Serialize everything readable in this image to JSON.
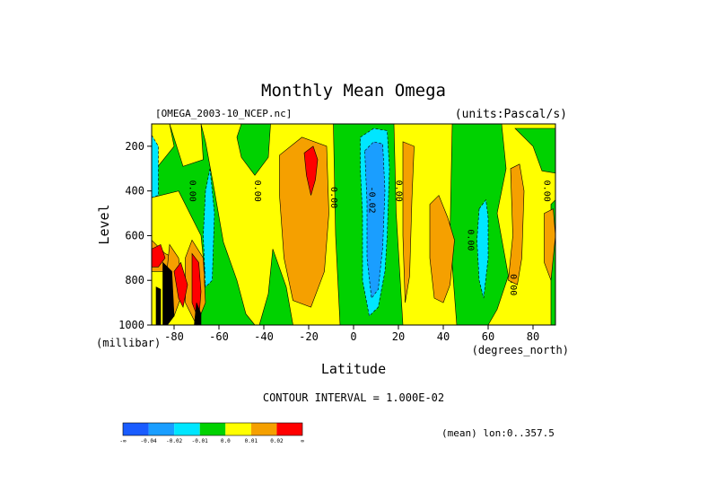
{
  "chart_data": {
    "type": "heatmap",
    "title": "Monthly Mean Omega",
    "file_label": "[OMEGA_2003-10_NCEP.nc]",
    "units_label": "(units:Pascal/s)",
    "xlabel": "Latitude",
    "xunit": "(degrees_north)",
    "ylabel": "Level",
    "yunit": "(millibar)",
    "xlim": [
      -90,
      90
    ],
    "ylim": [
      1000,
      100
    ],
    "xticks": [
      -80,
      -60,
      -40,
      -20,
      0,
      20,
      40,
      60,
      80
    ],
    "xtick_labels": [
      "-80",
      "-60",
      "-40",
      "-20",
      "0",
      "20",
      "40",
      "60",
      "80"
    ],
    "yticks": [
      200,
      400,
      600,
      800,
      1000
    ],
    "ytick_labels": [
      "200",
      "400",
      "600",
      "800",
      "1000"
    ],
    "contour_interval_text": "CONTOUR INTERVAL = 1.000E-02",
    "average_note": "(mean) lon:0..357.5",
    "contour_labels": [
      {
        "lat": -73,
        "level": 400,
        "text": "0.00"
      },
      {
        "lat": -44,
        "level": 400,
        "text": "0.00"
      },
      {
        "lat": -10,
        "level": 430,
        "text": "0.00"
      },
      {
        "lat": 7,
        "level": 440,
        "text": "-0.02"
      },
      {
        "lat": 19,
        "level": 400,
        "text": "0.00"
      },
      {
        "lat": 51,
        "level": 620,
        "text": "0.00"
      },
      {
        "lat": 70,
        "level": 820,
        "text": "0.00"
      },
      {
        "lat": 85,
        "level": 400,
        "text": "0.00"
      }
    ],
    "colorbar": {
      "colors": [
        "#1a5cff",
        "#1a9eff",
        "#00e6ff",
        "#00d200",
        "#ffff00",
        "#f5a000",
        "#ff0000"
      ],
      "labels": [
        "-∞",
        "-0.04",
        "-0.02",
        "-0.01",
        "0.0",
        "0.01",
        "0.02",
        "∞"
      ]
    },
    "level_colors": {
      "black": "#000000",
      "below_-0.04": "#1a5cff",
      "-0.04_to_-0.02": "#1a9eff",
      "-0.02_to_-0.01": "#00e6ff",
      "-0.01_to_0.0": "#00d200",
      "0.0_to_0.01": "#ffff00",
      "0.01_to_0.02": "#f5a000",
      "above_0.02": "#ff0000"
    },
    "regions": [
      {
        "color": "#00d200",
        "pts": [
          [
            -90,
            100
          ],
          [
            -68,
            100
          ],
          [
            -66,
            180
          ],
          [
            -62,
            400
          ],
          [
            -58,
            630
          ],
          [
            -52,
            800
          ],
          [
            -48,
            950
          ],
          [
            -44,
            1000
          ],
          [
            -90,
            1000
          ]
        ]
      },
      {
        "color": "#00d200",
        "pts": [
          [
            -50,
            100
          ],
          [
            -37,
            100
          ],
          [
            -38,
            250
          ],
          [
            -44,
            330
          ],
          [
            -50,
            250
          ],
          [
            -52,
            160
          ]
        ]
      },
      {
        "color": "#00d200",
        "pts": [
          [
            -36,
            660
          ],
          [
            -30,
            830
          ],
          [
            -27,
            1000
          ],
          [
            -42,
            1000
          ],
          [
            -38,
            860
          ]
        ]
      },
      {
        "color": "#00d200",
        "pts": [
          [
            -9,
            100
          ],
          [
            18,
            100
          ],
          [
            19,
            500
          ],
          [
            22,
            1000
          ],
          [
            -6,
            1000
          ],
          [
            -8,
            600
          ]
        ]
      },
      {
        "color": "#00d200",
        "pts": [
          [
            44,
            100
          ],
          [
            66,
            100
          ],
          [
            68,
            300
          ],
          [
            64,
            500
          ],
          [
            69,
            780
          ],
          [
            64,
            930
          ],
          [
            60,
            1000
          ],
          [
            46,
            1000
          ],
          [
            43,
            600
          ]
        ]
      },
      {
        "color": "#00d200",
        "pts": [
          [
            72,
            120
          ],
          [
            90,
            120
          ],
          [
            90,
            320
          ],
          [
            84,
            310
          ],
          [
            80,
            200
          ]
        ]
      },
      {
        "color": "#00d200",
        "pts": [
          [
            88,
            460
          ],
          [
            90,
            440
          ],
          [
            90,
            1000
          ],
          [
            88,
            1000
          ]
        ]
      },
      {
        "color": "#ffff00",
        "pts": [
          [
            -90,
            430
          ],
          [
            -78,
            400
          ],
          [
            -68,
            600
          ],
          [
            -66,
            800
          ],
          [
            -70,
            1000
          ],
          [
            -90,
            1000
          ]
        ]
      },
      {
        "color": "#ffff00",
        "pts": [
          [
            -90,
            100
          ],
          [
            -82,
            100
          ],
          [
            -80,
            200
          ],
          [
            -88,
            300
          ],
          [
            -90,
            300
          ]
        ]
      },
      {
        "color": "#ffff00",
        "pts": [
          [
            -82,
            100
          ],
          [
            -68,
            100
          ],
          [
            -67,
            260
          ],
          [
            -76,
            290
          ]
        ]
      },
      {
        "color": "#00e6ff",
        "pts": [
          [
            -90,
            150
          ],
          [
            -87,
            200
          ],
          [
            -87,
            420
          ],
          [
            -90,
            430
          ]
        ]
      },
      {
        "color": "#00e6ff",
        "pts": [
          [
            -64,
            300
          ],
          [
            -62,
            500
          ],
          [
            -63,
            800
          ],
          [
            -66,
            830
          ],
          [
            -67,
            600
          ],
          [
            -66,
            400
          ]
        ]
      },
      {
        "color": "#00e6ff",
        "pts": [
          [
            -77,
            760
          ],
          [
            -74,
            850
          ],
          [
            -76,
            900
          ],
          [
            -79,
            830
          ]
        ]
      },
      {
        "color": "#f5a000",
        "pts": [
          [
            -33,
            240
          ],
          [
            -23,
            160
          ],
          [
            -12,
            200
          ],
          [
            -11,
            500
          ],
          [
            -13,
            760
          ],
          [
            -19,
            920
          ],
          [
            -27,
            890
          ],
          [
            -31,
            700
          ],
          [
            -33,
            420
          ]
        ]
      },
      {
        "color": "#f5a000",
        "pts": [
          [
            -90,
            620
          ],
          [
            -84,
            680
          ],
          [
            -80,
            700
          ],
          [
            -83,
            760
          ],
          [
            -90,
            760
          ]
        ]
      },
      {
        "color": "#f5a000",
        "pts": [
          [
            -82,
            640
          ],
          [
            -78,
            700
          ],
          [
            -76,
            850
          ],
          [
            -80,
            960
          ],
          [
            -84,
            840
          ]
        ]
      },
      {
        "color": "#f5a000",
        "pts": [
          [
            -72,
            620
          ],
          [
            -67,
            700
          ],
          [
            -66,
            900
          ],
          [
            -70,
            1000
          ],
          [
            -75,
            900
          ],
          [
            -75,
            700
          ]
        ]
      },
      {
        "color": "#f5a000",
        "pts": [
          [
            22,
            180
          ],
          [
            27,
            200
          ],
          [
            26,
            440
          ],
          [
            25,
            780
          ],
          [
            23,
            900
          ],
          [
            22,
            600
          ]
        ]
      },
      {
        "color": "#f5a000",
        "pts": [
          [
            34,
            460
          ],
          [
            38,
            420
          ],
          [
            42,
            520
          ],
          [
            45,
            620
          ],
          [
            43,
            820
          ],
          [
            40,
            900
          ],
          [
            36,
            880
          ],
          [
            34,
            700
          ]
        ]
      },
      {
        "color": "#f5a000",
        "pts": [
          [
            70,
            300
          ],
          [
            74,
            280
          ],
          [
            76,
            400
          ],
          [
            75,
            700
          ],
          [
            73,
            820
          ],
          [
            69,
            800
          ],
          [
            71,
            600
          ]
        ]
      },
      {
        "color": "#f5a000",
        "pts": [
          [
            85,
            500
          ],
          [
            89,
            480
          ],
          [
            90,
            600
          ],
          [
            88,
            800
          ],
          [
            85,
            720
          ]
        ]
      },
      {
        "color": "#ff0000",
        "pts": [
          [
            -22,
            230
          ],
          [
            -18,
            200
          ],
          [
            -16,
            260
          ],
          [
            -17,
            350
          ],
          [
            -19,
            420
          ],
          [
            -21,
            330
          ]
        ]
      },
      {
        "color": "#ff0000",
        "pts": [
          [
            -90,
            660
          ],
          [
            -86,
            640
          ],
          [
            -84,
            700
          ],
          [
            -87,
            740
          ],
          [
            -90,
            740
          ]
        ]
      },
      {
        "color": "#ff0000",
        "pts": [
          [
            -80,
            760
          ],
          [
            -77,
            720
          ],
          [
            -74,
            820
          ],
          [
            -76,
            920
          ],
          [
            -78,
            880
          ]
        ]
      },
      {
        "color": "#ff0000",
        "pts": [
          [
            -72,
            680
          ],
          [
            -69,
            720
          ],
          [
            -68,
            850
          ],
          [
            -69,
            980
          ],
          [
            -72,
            900
          ]
        ]
      },
      {
        "color": "#000000",
        "pts": [
          [
            -88,
            830
          ],
          [
            -86,
            840
          ],
          [
            -86,
            1000
          ],
          [
            -88,
            1000
          ]
        ]
      },
      {
        "color": "#000000",
        "pts": [
          [
            -85,
            720
          ],
          [
            -81,
            760
          ],
          [
            -80,
            960
          ],
          [
            -83,
            1000
          ],
          [
            -85,
            1000
          ]
        ]
      },
      {
        "color": "#000000",
        "pts": [
          [
            -70,
            900
          ],
          [
            -68,
            950
          ],
          [
            -68,
            1000
          ],
          [
            -71,
            1000
          ]
        ]
      },
      {
        "color": "#00e6ff",
        "pts": [
          [
            3,
            160
          ],
          [
            9,
            120
          ],
          [
            15,
            130
          ],
          [
            16,
            300
          ],
          [
            15,
            600
          ],
          [
            14,
            760
          ],
          [
            11,
            920
          ],
          [
            7,
            960
          ],
          [
            4,
            800
          ],
          [
            4,
            500
          ],
          [
            3,
            300
          ]
        ]
      },
      {
        "color": "#1a9eff",
        "pts": [
          [
            5,
            220
          ],
          [
            9,
            180
          ],
          [
            13,
            190
          ],
          [
            14,
            400
          ],
          [
            13,
            650
          ],
          [
            11,
            840
          ],
          [
            8,
            880
          ],
          [
            6,
            700
          ],
          [
            6,
            450
          ]
        ]
      },
      {
        "color": "#00e6ff",
        "pts": [
          [
            56,
            480
          ],
          [
            59,
            440
          ],
          [
            60,
            520
          ],
          [
            60,
            700
          ],
          [
            58,
            880
          ],
          [
            56,
            800
          ],
          [
            55,
            620
          ]
        ]
      }
    ]
  }
}
